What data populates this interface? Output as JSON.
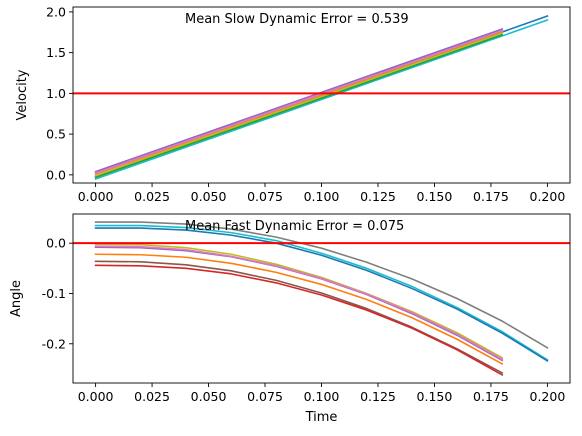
{
  "chart_data": [
    {
      "type": "line",
      "annotation": "Mean Slow Dynamic Error = 0.539",
      "xlabel": "",
      "ylabel": "Velocity",
      "xlim": [
        -0.01,
        0.21
      ],
      "ylim": [
        -0.1,
        2.06
      ],
      "xticks": [
        "0.000",
        "0.025",
        "0.050",
        "0.075",
        "0.100",
        "0.125",
        "0.150",
        "0.175",
        "0.200"
      ],
      "yticks": [
        "0.0",
        "0.5",
        "1.0",
        "1.5",
        "2.0"
      ],
      "hline": {
        "y": 1.0,
        "color": "#ff0000"
      },
      "grid": false,
      "series": [
        {
          "color": "#1f77b4",
          "x": [
            0.0,
            0.2
          ],
          "y": [
            -0.02,
            1.95
          ]
        },
        {
          "color": "#17becf",
          "x": [
            0.0,
            0.2
          ],
          "y": [
            -0.05,
            1.9
          ]
        },
        {
          "color": "#2ca02c",
          "x": [
            0.0,
            0.18
          ],
          "y": [
            -0.03,
            1.72
          ]
        },
        {
          "color": "#bcbd22",
          "x": [
            0.0,
            0.18
          ],
          "y": [
            -0.01,
            1.74
          ]
        },
        {
          "color": "#ff7f0e",
          "x": [
            0.0,
            0.18
          ],
          "y": [
            0.01,
            1.76
          ]
        },
        {
          "color": "#e377c2",
          "x": [
            0.0,
            0.18
          ],
          "y": [
            0.02,
            1.77
          ]
        },
        {
          "color": "#9467bd",
          "x": [
            0.0,
            0.18
          ],
          "y": [
            0.04,
            1.79
          ]
        }
      ]
    },
    {
      "type": "line",
      "annotation": "Mean Fast Dynamic Error = 0.075",
      "xlabel": "Time",
      "ylabel": "Angle",
      "xlim": [
        -0.01,
        0.21
      ],
      "ylim": [
        -0.278,
        0.058
      ],
      "xticks": [
        "0.000",
        "0.025",
        "0.050",
        "0.075",
        "0.100",
        "0.125",
        "0.150",
        "0.175",
        "0.200"
      ],
      "yticks": [
        "0.0",
        "-0.1",
        "-0.2"
      ],
      "hline": {
        "y": 0.0,
        "color": "#ff0000"
      },
      "grid": false,
      "series": [
        {
          "color": "#7f7f7f",
          "x": [
            0,
            0.02,
            0.04,
            0.06,
            0.08,
            0.1,
            0.12,
            0.14,
            0.16,
            0.18,
            0.2
          ],
          "y": [
            0.042,
            0.042,
            0.038,
            0.028,
            0.012,
            -0.01,
            -0.038,
            -0.071,
            -0.11,
            -0.155,
            -0.208
          ]
        },
        {
          "color": "#17becf",
          "x": [
            0,
            0.02,
            0.04,
            0.06,
            0.08,
            0.1,
            0.12,
            0.14,
            0.16,
            0.18,
            0.2
          ],
          "y": [
            0.035,
            0.035,
            0.031,
            0.021,
            0.005,
            -0.02,
            -0.05,
            -0.086,
            -0.128,
            -0.176,
            -0.232
          ]
        },
        {
          "color": "#1f77b4",
          "x": [
            0,
            0.02,
            0.04,
            0.06,
            0.08,
            0.1,
            0.12,
            0.14,
            0.16,
            0.18,
            0.2
          ],
          "y": [
            0.03,
            0.03,
            0.026,
            0.016,
            0.0,
            -0.024,
            -0.054,
            -0.09,
            -0.131,
            -0.179,
            -0.234
          ]
        },
        {
          "color": "#bcbd22",
          "x": [
            0,
            0.02,
            0.04,
            0.06,
            0.08,
            0.1,
            0.12,
            0.14,
            0.16,
            0.18
          ],
          "y": [
            -0.002,
            -0.003,
            -0.009,
            -0.022,
            -0.042,
            -0.068,
            -0.1,
            -0.136,
            -0.178,
            -0.228
          ]
        },
        {
          "color": "#9467bd",
          "x": [
            0,
            0.02,
            0.04,
            0.06,
            0.08,
            0.1,
            0.12,
            0.14,
            0.16,
            0.18
          ],
          "y": [
            -0.008,
            -0.009,
            -0.015,
            -0.027,
            -0.046,
            -0.071,
            -0.102,
            -0.14,
            -0.183,
            -0.233
          ]
        },
        {
          "color": "#e377c2",
          "x": [
            0,
            0.02,
            0.04,
            0.06,
            0.08,
            0.1,
            0.12,
            0.14,
            0.16,
            0.18
          ],
          "y": [
            -0.006,
            -0.007,
            -0.013,
            -0.026,
            -0.045,
            -0.07,
            -0.101,
            -0.138,
            -0.181,
            -0.231
          ]
        },
        {
          "color": "#ff7f0e",
          "x": [
            0,
            0.02,
            0.04,
            0.06,
            0.08,
            0.1,
            0.12,
            0.14,
            0.16,
            0.18
          ],
          "y": [
            -0.022,
            -0.023,
            -0.028,
            -0.04,
            -0.058,
            -0.082,
            -0.112,
            -0.148,
            -0.191,
            -0.24
          ]
        },
        {
          "color": "#8c564b",
          "x": [
            0,
            0.02,
            0.04,
            0.06,
            0.08,
            0.1,
            0.12,
            0.14,
            0.16,
            0.18
          ],
          "y": [
            -0.036,
            -0.037,
            -0.043,
            -0.055,
            -0.074,
            -0.099,
            -0.13,
            -0.167,
            -0.21,
            -0.258
          ]
        },
        {
          "color": "#d62728",
          "x": [
            0,
            0.02,
            0.04,
            0.06,
            0.08,
            0.1,
            0.12,
            0.14,
            0.16,
            0.18
          ],
          "y": [
            -0.044,
            -0.045,
            -0.05,
            -0.061,
            -0.079,
            -0.103,
            -0.133,
            -0.169,
            -0.212,
            -0.262
          ]
        }
      ]
    }
  ]
}
